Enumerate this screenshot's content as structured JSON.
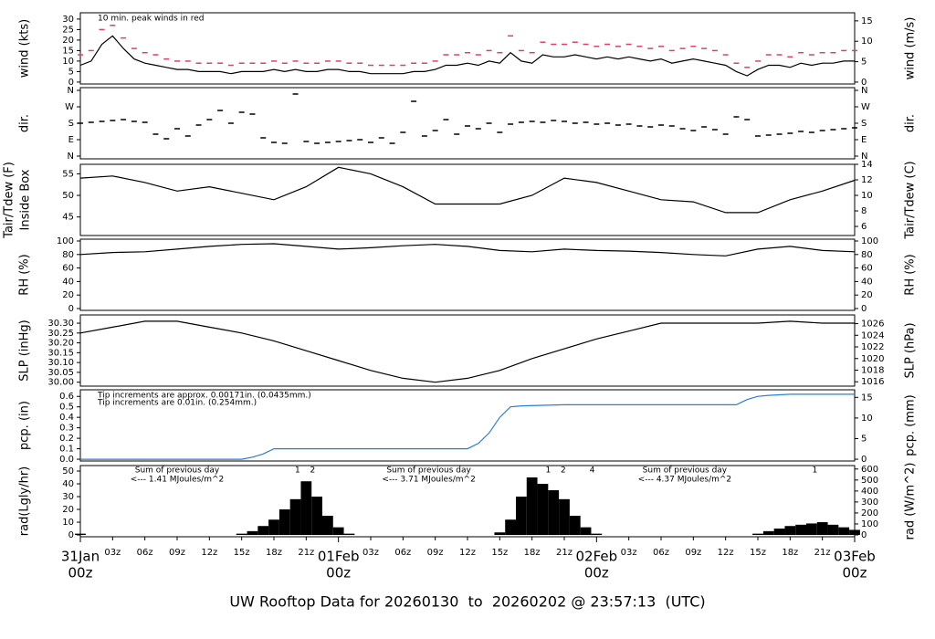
{
  "chart_data": [
    {
      "type": "line",
      "ylabel": "wind (kts)",
      "y2label": "wind (m/s)",
      "ylim": [
        -0.9,
        33
      ],
      "yticks": [
        0,
        5,
        10,
        15,
        20,
        25,
        30
      ],
      "y2lim": [
        -0.46,
        16.98
      ],
      "y2ticks": [
        0,
        5,
        10,
        15
      ],
      "annotation": "10 min. peak winds in red",
      "annotation_color": "#e0405f",
      "x": [
        0,
        1,
        2,
        3,
        4,
        5,
        6,
        7,
        8,
        9,
        10,
        11,
        12,
        13,
        14,
        15,
        16,
        17,
        18,
        19,
        20,
        21,
        22,
        23,
        24,
        25,
        26,
        27,
        28,
        29,
        30,
        31,
        32,
        33,
        34,
        35,
        36,
        37,
        38,
        39,
        40,
        41,
        42,
        43,
        44,
        45,
        46,
        47,
        48,
        49,
        50,
        51,
        52,
        53,
        54,
        55,
        56,
        57,
        58,
        59,
        60,
        61,
        62,
        63,
        64,
        65,
        66,
        67,
        68,
        69,
        70,
        71,
        72
      ],
      "series": [
        {
          "color": "#000000",
          "style": "line",
          "values": [
            8,
            10,
            18,
            22,
            16,
            11,
            9,
            8,
            7,
            6,
            6,
            5,
            5,
            5,
            4,
            5,
            5,
            5,
            6,
            5,
            6,
            5,
            5,
            6,
            6,
            5,
            5,
            4,
            4,
            4,
            4,
            5,
            5,
            6,
            8,
            8,
            9,
            8,
            10,
            9,
            14,
            10,
            9,
            13,
            12,
            12,
            13,
            12,
            11,
            12,
            11,
            12,
            11,
            10,
            11,
            9,
            10,
            11,
            10,
            9,
            8,
            5,
            3,
            6,
            8,
            8,
            7,
            9,
            8,
            9,
            9,
            10,
            10
          ]
        },
        {
          "color": "#e0405f",
          "style": "dash",
          "values": [
            13,
            15,
            25,
            27,
            21,
            16,
            14,
            13,
            11,
            10,
            10,
            9,
            9,
            9,
            8,
            9,
            9,
            9,
            10,
            9,
            10,
            9,
            9,
            10,
            10,
            9,
            9,
            8,
            8,
            8,
            8,
            9,
            9,
            10,
            13,
            13,
            14,
            13,
            15,
            14,
            22,
            15,
            14,
            19,
            18,
            18,
            19,
            18,
            17,
            18,
            17,
            18,
            17,
            16,
            17,
            15,
            16,
            17,
            16,
            15,
            13,
            9,
            7,
            10,
            13,
            13,
            12,
            14,
            13,
            14,
            14,
            15,
            15
          ]
        }
      ]
    },
    {
      "type": "scatter",
      "ylabel": "dir.",
      "y2label": "dir.",
      "ylim": [
        -15,
        375
      ],
      "y2lim": [
        -15,
        375
      ],
      "yticks": [
        {
          "value": 0,
          "label": "N"
        },
        {
          "value": 90,
          "label": "E"
        },
        {
          "value": 180,
          "label": "S"
        },
        {
          "value": 270,
          "label": "W"
        },
        {
          "value": 360,
          "label": "N"
        }
      ],
      "y2ticks": [
        {
          "value": 0,
          "label": "N"
        },
        {
          "value": 90,
          "label": "E"
        },
        {
          "value": 180,
          "label": "S"
        },
        {
          "value": 270,
          "label": "W"
        },
        {
          "value": 360,
          "label": "N"
        }
      ],
      "x": [
        0,
        1,
        2,
        3,
        4,
        5,
        6,
        7,
        8,
        9,
        10,
        11,
        12,
        13,
        14,
        15,
        16,
        17,
        18,
        19,
        20,
        21,
        22,
        23,
        24,
        25,
        26,
        27,
        28,
        29,
        30,
        31,
        32,
        33,
        34,
        35,
        36,
        37,
        38,
        39,
        40,
        41,
        42,
        43,
        44,
        45,
        46,
        47,
        48,
        49,
        50,
        51,
        52,
        53,
        54,
        55,
        56,
        57,
        58,
        59,
        60,
        61,
        62,
        63,
        64,
        65,
        66,
        67,
        68,
        69,
        70,
        71,
        72
      ],
      "series": [
        {
          "color": "#000000",
          "style": "dash",
          "values": [
            180,
            185,
            190,
            195,
            200,
            190,
            185,
            120,
            95,
            150,
            110,
            170,
            200,
            250,
            180,
            240,
            230,
            100,
            75,
            70,
            340,
            80,
            70,
            75,
            80,
            85,
            90,
            75,
            100,
            70,
            130,
            300,
            110,
            140,
            200,
            120,
            165,
            150,
            180,
            130,
            175,
            185,
            190,
            185,
            195,
            190,
            180,
            185,
            175,
            180,
            170,
            175,
            165,
            160,
            170,
            165,
            150,
            140,
            160,
            145,
            120,
            215,
            200,
            110,
            115,
            120,
            125,
            135,
            130,
            140,
            145,
            150,
            155
          ]
        }
      ]
    },
    {
      "type": "line",
      "ylabel": "Tair/Tdew (F)",
      "ylabel_sub": "Inside Box",
      "y2label": "Tair/Tdew (C)",
      "ylim": [
        40.7,
        57.2
      ],
      "yticks": [
        45,
        50,
        55
      ],
      "y2lim": [
        4.83,
        14.0
      ],
      "y2ticks": [
        6,
        8,
        10,
        12,
        14
      ],
      "x": [
        0,
        3,
        6,
        9,
        12,
        15,
        18,
        21,
        24,
        27,
        30,
        33,
        36,
        39,
        42,
        45,
        48,
        51,
        54,
        57,
        60,
        63,
        66,
        69,
        72
      ],
      "series": [
        {
          "color": "#000000",
          "style": "line",
          "values": [
            54,
            54.5,
            53,
            51,
            52,
            50.5,
            49,
            52,
            56.5,
            55,
            52,
            48,
            48,
            48,
            50,
            54,
            53,
            51,
            49,
            48.5,
            46,
            46,
            49,
            51,
            53.5
          ]
        }
      ]
    },
    {
      "type": "line",
      "ylabel": "RH (%)",
      "y2label": "RH (%)",
      "ylim": [
        -2.7,
        102.7
      ],
      "yticks": [
        0,
        20,
        40,
        60,
        80,
        100
      ],
      "y2lim": [
        -2.7,
        102.7
      ],
      "y2ticks": [
        0,
        20,
        40,
        60,
        80,
        100
      ],
      "x": [
        0,
        3,
        6,
        9,
        12,
        15,
        18,
        21,
        24,
        27,
        30,
        33,
        36,
        39,
        42,
        45,
        48,
        51,
        54,
        57,
        60,
        63,
        66,
        69,
        72
      ],
      "series": [
        {
          "color": "#000000",
          "style": "line",
          "values": [
            80,
            83,
            84,
            88,
            92,
            95,
            96,
            92,
            88,
            90,
            93,
            95,
            92,
            86,
            84,
            88,
            86,
            85,
            83,
            80,
            78,
            88,
            92,
            86,
            84
          ]
        }
      ]
    },
    {
      "type": "line",
      "ylabel": "SLP (inHg)",
      "y2label": "SLP (hPa)",
      "ylim": [
        29.98,
        30.342
      ],
      "yticks": [
        {
          "value": 30,
          "label": "30.00"
        },
        {
          "value": 30.05,
          "label": "30.05"
        },
        {
          "value": 30.1,
          "label": "30.10"
        },
        {
          "value": 30.15,
          "label": "30.15"
        },
        {
          "value": 30.2,
          "label": "30.20"
        },
        {
          "value": 30.25,
          "label": "30.25"
        },
        {
          "value": 30.3,
          "label": "30.30"
        }
      ],
      "y2lim": [
        1015.25,
        1027.5
      ],
      "y2ticks": [
        1016,
        1018,
        1020,
        1022,
        1024,
        1026
      ],
      "x": [
        0,
        3,
        6,
        9,
        12,
        15,
        18,
        21,
        24,
        27,
        30,
        33,
        36,
        39,
        42,
        45,
        48,
        51,
        54,
        57,
        60,
        63,
        66,
        69,
        72
      ],
      "series": [
        {
          "color": "#000000",
          "style": "line",
          "values": [
            30.25,
            30.28,
            30.31,
            30.31,
            30.28,
            30.25,
            30.21,
            30.16,
            30.11,
            30.06,
            30.02,
            30,
            30.02,
            30.06,
            30.12,
            30.17,
            30.22,
            30.26,
            30.3,
            30.3,
            30.3,
            30.3,
            30.31,
            30.3,
            30.3
          ]
        }
      ]
    },
    {
      "type": "line",
      "ylabel": "pcp. (in)",
      "y2label": "pcp. (mm)",
      "ylim": [
        -0.017,
        0.663
      ],
      "yticks": [
        {
          "value": 0,
          "label": "0.0"
        },
        0.1,
        0.2,
        0.3,
        0.4,
        0.5,
        0.6
      ],
      "y2lim": [
        -0.43,
        16.84
      ],
      "y2ticks": [
        0,
        5,
        10,
        15
      ],
      "notes": [
        {
          "text": "Tip increments are approx. 0.00171in. (0.0435mm.)",
          "color": "#e0405f"
        },
        {
          "text": "Tip increments are 0.01in. (0.254mm.)",
          "color": "#2a7fd4"
        }
      ],
      "x": [
        0,
        15,
        16,
        17,
        18,
        36,
        37,
        38,
        39,
        40,
        41,
        45,
        61,
        62,
        63,
        64,
        66,
        72
      ],
      "series": [
        {
          "color": "#2a7fd4",
          "style": "line",
          "values": [
            0,
            0,
            0.02,
            0.05,
            0.1,
            0.1,
            0.15,
            0.25,
            0.4,
            0.5,
            0.51,
            0.52,
            0.52,
            0.57,
            0.6,
            0.61,
            0.62,
            0.62
          ]
        }
      ]
    },
    {
      "type": "bar",
      "ylabel": "rad(Lgly/hr)",
      "y2label": "rad (W/m^2)",
      "ylim": [
        -1.4,
        54.3
      ],
      "yticks": [
        0,
        10,
        20,
        30,
        40,
        50
      ],
      "y2lim": [
        -16.6,
        631.5
      ],
      "y2ticks": [
        0,
        100,
        200,
        300,
        400,
        500,
        600
      ],
      "annotation_color": "#a23bd6",
      "annotations": [
        {
          "x": 9,
          "lines": [
            "Sum of previous day",
            "<--- 1.41 MJoules/m^2"
          ]
        },
        {
          "x": 32.4,
          "lines": [
            "Sum of previous day",
            "<--- 3.71 MJoules/m^2"
          ]
        },
        {
          "x": 56.2,
          "lines": [
            "Sum of previous day",
            "<--- 4.37 MJoules/m^2"
          ]
        }
      ],
      "tip_marks": [
        {
          "x": 20.2,
          "label": "1"
        },
        {
          "x": 21.6,
          "label": "2"
        },
        {
          "x": 43.5,
          "label": "1"
        },
        {
          "x": 44.9,
          "label": "2"
        },
        {
          "x": 47.6,
          "label": "4"
        },
        {
          "x": 68.3,
          "label": "1"
        }
      ],
      "x": [
        0,
        1,
        2,
        3,
        4,
        5,
        6,
        7,
        8,
        9,
        10,
        11,
        12,
        13,
        14,
        15,
        16,
        17,
        18,
        19,
        20,
        21,
        22,
        23,
        24,
        25,
        26,
        27,
        28,
        29,
        30,
        31,
        32,
        33,
        34,
        35,
        36,
        37,
        38,
        39,
        40,
        41,
        42,
        43,
        44,
        45,
        46,
        47,
        48,
        49,
        50,
        51,
        52,
        53,
        54,
        55,
        56,
        57,
        58,
        59,
        60,
        61,
        62,
        63,
        64,
        65,
        66,
        67,
        68,
        69,
        70,
        71,
        72
      ],
      "series": [
        {
          "color": "#000000",
          "style": "bar",
          "values": [
            1,
            0,
            0,
            0,
            0,
            0,
            0,
            0,
            0,
            0,
            0,
            0,
            0,
            0,
            0,
            1,
            3,
            7,
            12,
            20,
            28,
            42,
            30,
            15,
            6,
            1,
            0,
            0,
            0,
            0,
            0,
            0,
            0,
            0,
            0,
            0,
            0,
            0,
            0,
            2,
            12,
            30,
            45,
            40,
            35,
            28,
            15,
            6,
            1,
            0,
            0,
            0,
            0,
            0,
            0,
            0,
            0,
            0,
            0,
            0,
            0,
            0,
            0,
            1,
            3,
            5,
            7,
            8,
            9,
            10,
            8,
            6,
            4
          ]
        }
      ]
    }
  ],
  "x_axis": {
    "xlim": [
      0,
      72
    ],
    "xticks": [
      {
        "value": 3,
        "label": "03z"
      },
      {
        "value": 6,
        "label": "06z"
      },
      {
        "value": 9,
        "label": "09z"
      },
      {
        "value": 12,
        "label": "12z"
      },
      {
        "value": 15,
        "label": "15z"
      },
      {
        "value": 18,
        "label": "18z"
      },
      {
        "value": 21,
        "label": "21z"
      },
      {
        "value": 27,
        "label": "03z"
      },
      {
        "value": 30,
        "label": "06z"
      },
      {
        "value": 33,
        "label": "09z"
      },
      {
        "value": 36,
        "label": "12z"
      },
      {
        "value": 39,
        "label": "15z"
      },
      {
        "value": 42,
        "label": "18z"
      },
      {
        "value": 45,
        "label": "21z"
      },
      {
        "value": 51,
        "label": "03z"
      },
      {
        "value": 54,
        "label": "06z"
      },
      {
        "value": 57,
        "label": "09z"
      },
      {
        "value": 60,
        "label": "12z"
      },
      {
        "value": 63,
        "label": "15z"
      },
      {
        "value": 66,
        "label": "18z"
      },
      {
        "value": 69,
        "label": "21z"
      }
    ],
    "day_ticks": [
      {
        "value": 0,
        "label": "31Jan",
        "time": "00z"
      },
      {
        "value": 24,
        "label": "01Feb",
        "time": "00z"
      },
      {
        "value": 48,
        "label": "02Feb",
        "time": "00z"
      },
      {
        "value": 72,
        "label": "03Feb",
        "time": "00z"
      }
    ],
    "day_color": "#d9466b"
  },
  "footer": "UW Rooftop Data for 20260130  to  20260202 @ 23:57:13  (UTC)",
  "footer_color": "#2a8fd4"
}
